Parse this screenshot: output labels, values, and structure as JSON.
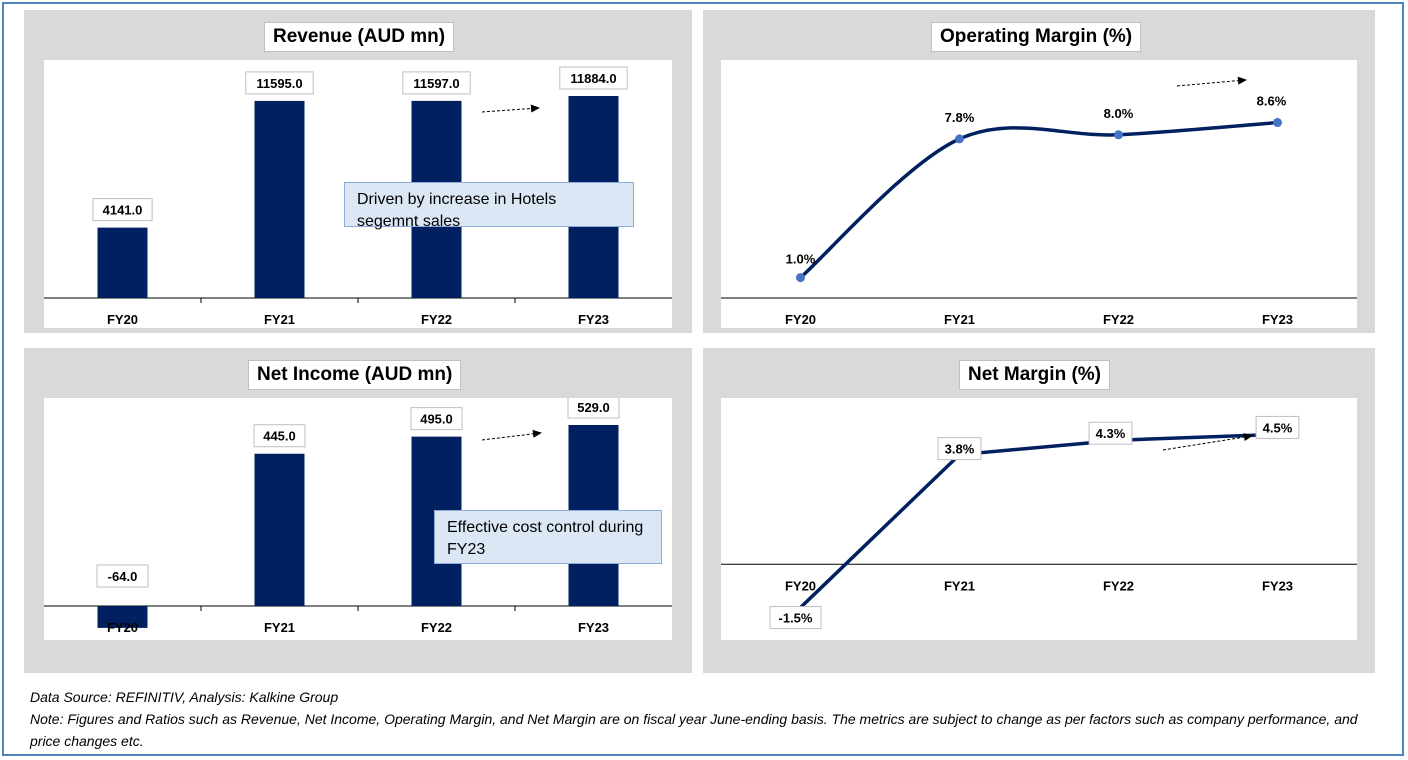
{
  "charts": {
    "revenue": {
      "chart_data": {
        "type": "bar",
        "title": "Revenue (AUD mn)",
        "categories": [
          "FY20",
          "FY21",
          "FY22",
          "FY23"
        ],
        "values": [
          4141.0,
          11595.0,
          11597.0,
          11884.0
        ],
        "labels": [
          "4141.0",
          "11595.0",
          "11597.0",
          "11884.0"
        ],
        "ylim": [
          0,
          13500
        ],
        "color": "#002060",
        "annotation": "Driven by increase in Hotels segemnt sales"
      }
    },
    "operating_margin": {
      "chart_data": {
        "type": "line",
        "title": "Operating Margin (%)",
        "categories": [
          "FY20",
          "FY21",
          "FY22",
          "FY23"
        ],
        "values": [
          1.0,
          7.8,
          8.0,
          8.6
        ],
        "labels": [
          "1.0%",
          "7.8%",
          "8.0%",
          "8.6%"
        ],
        "ylim": [
          0,
          10
        ],
        "color": "#002060",
        "marker_color": "#4472c4"
      }
    },
    "net_income": {
      "chart_data": {
        "type": "bar",
        "title": "Net Income (AUD mn)",
        "categories": [
          "FY20",
          "FY21",
          "FY22",
          "FY23"
        ],
        "values": [
          -64.0,
          445.0,
          495.0,
          529.0
        ],
        "labels": [
          "-64.0",
          "445.0",
          "495.0",
          "529.0"
        ],
        "ylim": [
          -100,
          600
        ],
        "color": "#002060",
        "annotation": "Effective cost control during FY23"
      }
    },
    "net_margin": {
      "chart_data": {
        "type": "line",
        "title": "Net Margin (%)",
        "categories": [
          "FY20",
          "FY21",
          "FY22",
          "FY23"
        ],
        "values": [
          -1.5,
          3.8,
          4.3,
          4.5
        ],
        "labels": [
          "-1.5%",
          "3.8%",
          "4.3%",
          "4.5%"
        ],
        "ylim": [
          -2,
          5
        ],
        "color": "#002060"
      }
    }
  },
  "footer": {
    "source": "Data Source: REFINITIV, Analysis: Kalkine Group",
    "note": "Note: Figures and Ratios such as Revenue, Net Income, Operating Margin, and Net Margin are on fiscal year June-ending basis. The metrics are subject to change as per factors such as company performance, and price changes etc."
  }
}
